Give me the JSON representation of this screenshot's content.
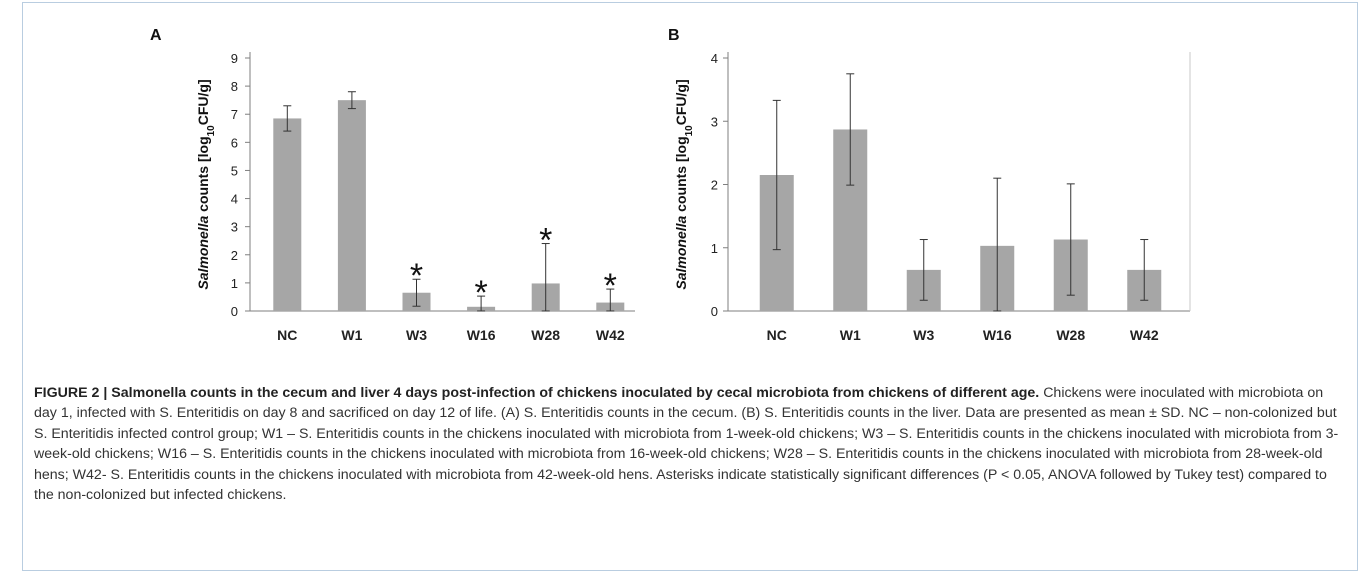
{
  "caption": {
    "title": "FIGURE 2 | Salmonella counts in the cecum and liver 4 days post-infection of chickens inoculated by cecal microbiota from chickens of different age.",
    "body": "Chickens were inoculated with microbiota on day 1, infected with S. Enteritidis on day 8 and sacrificed on day 12 of life. (A) S. Enteritidis counts in the cecum. (B) S. Enteritidis counts in the liver. Data are presented as mean ± SD. NC – non-colonized but S. Enteritidis infected control group; W1 – S. Enteritidis counts in the chickens inoculated with microbiota from 1-week-old chickens; W3 – S. Enteritidis counts in the chickens inoculated with microbiota from 3-week-old chickens; W16 – S. Enteritidis counts in the chickens inoculated with microbiota from 16-week-old chickens; W28 – S. Enteritidis counts in the chickens inoculated with microbiota from 28-week-old hens; W42- S. Enteritidis counts in the chickens inoculated with microbiota from 42-week-old hens. Asterisks indicate statistically significant differences (P < 0.05, ANOVA followed by Tukey test) compared to the non-colonized but infected chickens."
  },
  "colors": {
    "bar": "#a6a6a6",
    "axis": "#7f7f7f",
    "text": "#222222"
  },
  "chart_data": [
    {
      "panel_label": "A",
      "type": "bar",
      "ylabel_main": "Salmonella",
      "ylabel_rest": " counts [log",
      "ylabel_sub": "10",
      "ylabel_end": "CFU/g]",
      "ylim": [
        0,
        9
      ],
      "yticks": [
        0,
        1,
        2,
        3,
        4,
        5,
        6,
        7,
        8,
        9
      ],
      "grid": false,
      "categories": [
        "NC",
        "W1",
        "W3",
        "W16",
        "W28",
        "W42"
      ],
      "values": [
        6.85,
        7.5,
        0.65,
        0.15,
        0.98,
        0.3
      ],
      "errors": [
        0.45,
        0.3,
        0.48,
        0.38,
        1.42,
        0.48
      ],
      "significant": [
        false,
        false,
        true,
        true,
        true,
        true
      ],
      "marker": "*"
    },
    {
      "panel_label": "B",
      "type": "bar",
      "ylabel_main": "Salmonella",
      "ylabel_rest": " counts [log",
      "ylabel_sub": "10",
      "ylabel_end": "CFU/g]",
      "ylim": [
        0,
        4
      ],
      "yticks": [
        0,
        1,
        2,
        3,
        4
      ],
      "grid": false,
      "categories": [
        "NC",
        "W1",
        "W3",
        "W16",
        "W28",
        "W42"
      ],
      "values": [
        2.15,
        2.87,
        0.65,
        1.03,
        1.13,
        0.65
      ],
      "errors": [
        1.18,
        0.88,
        0.48,
        1.07,
        0.88,
        0.48
      ],
      "significant": [
        false,
        false,
        false,
        false,
        false,
        false
      ],
      "marker": "*"
    }
  ]
}
